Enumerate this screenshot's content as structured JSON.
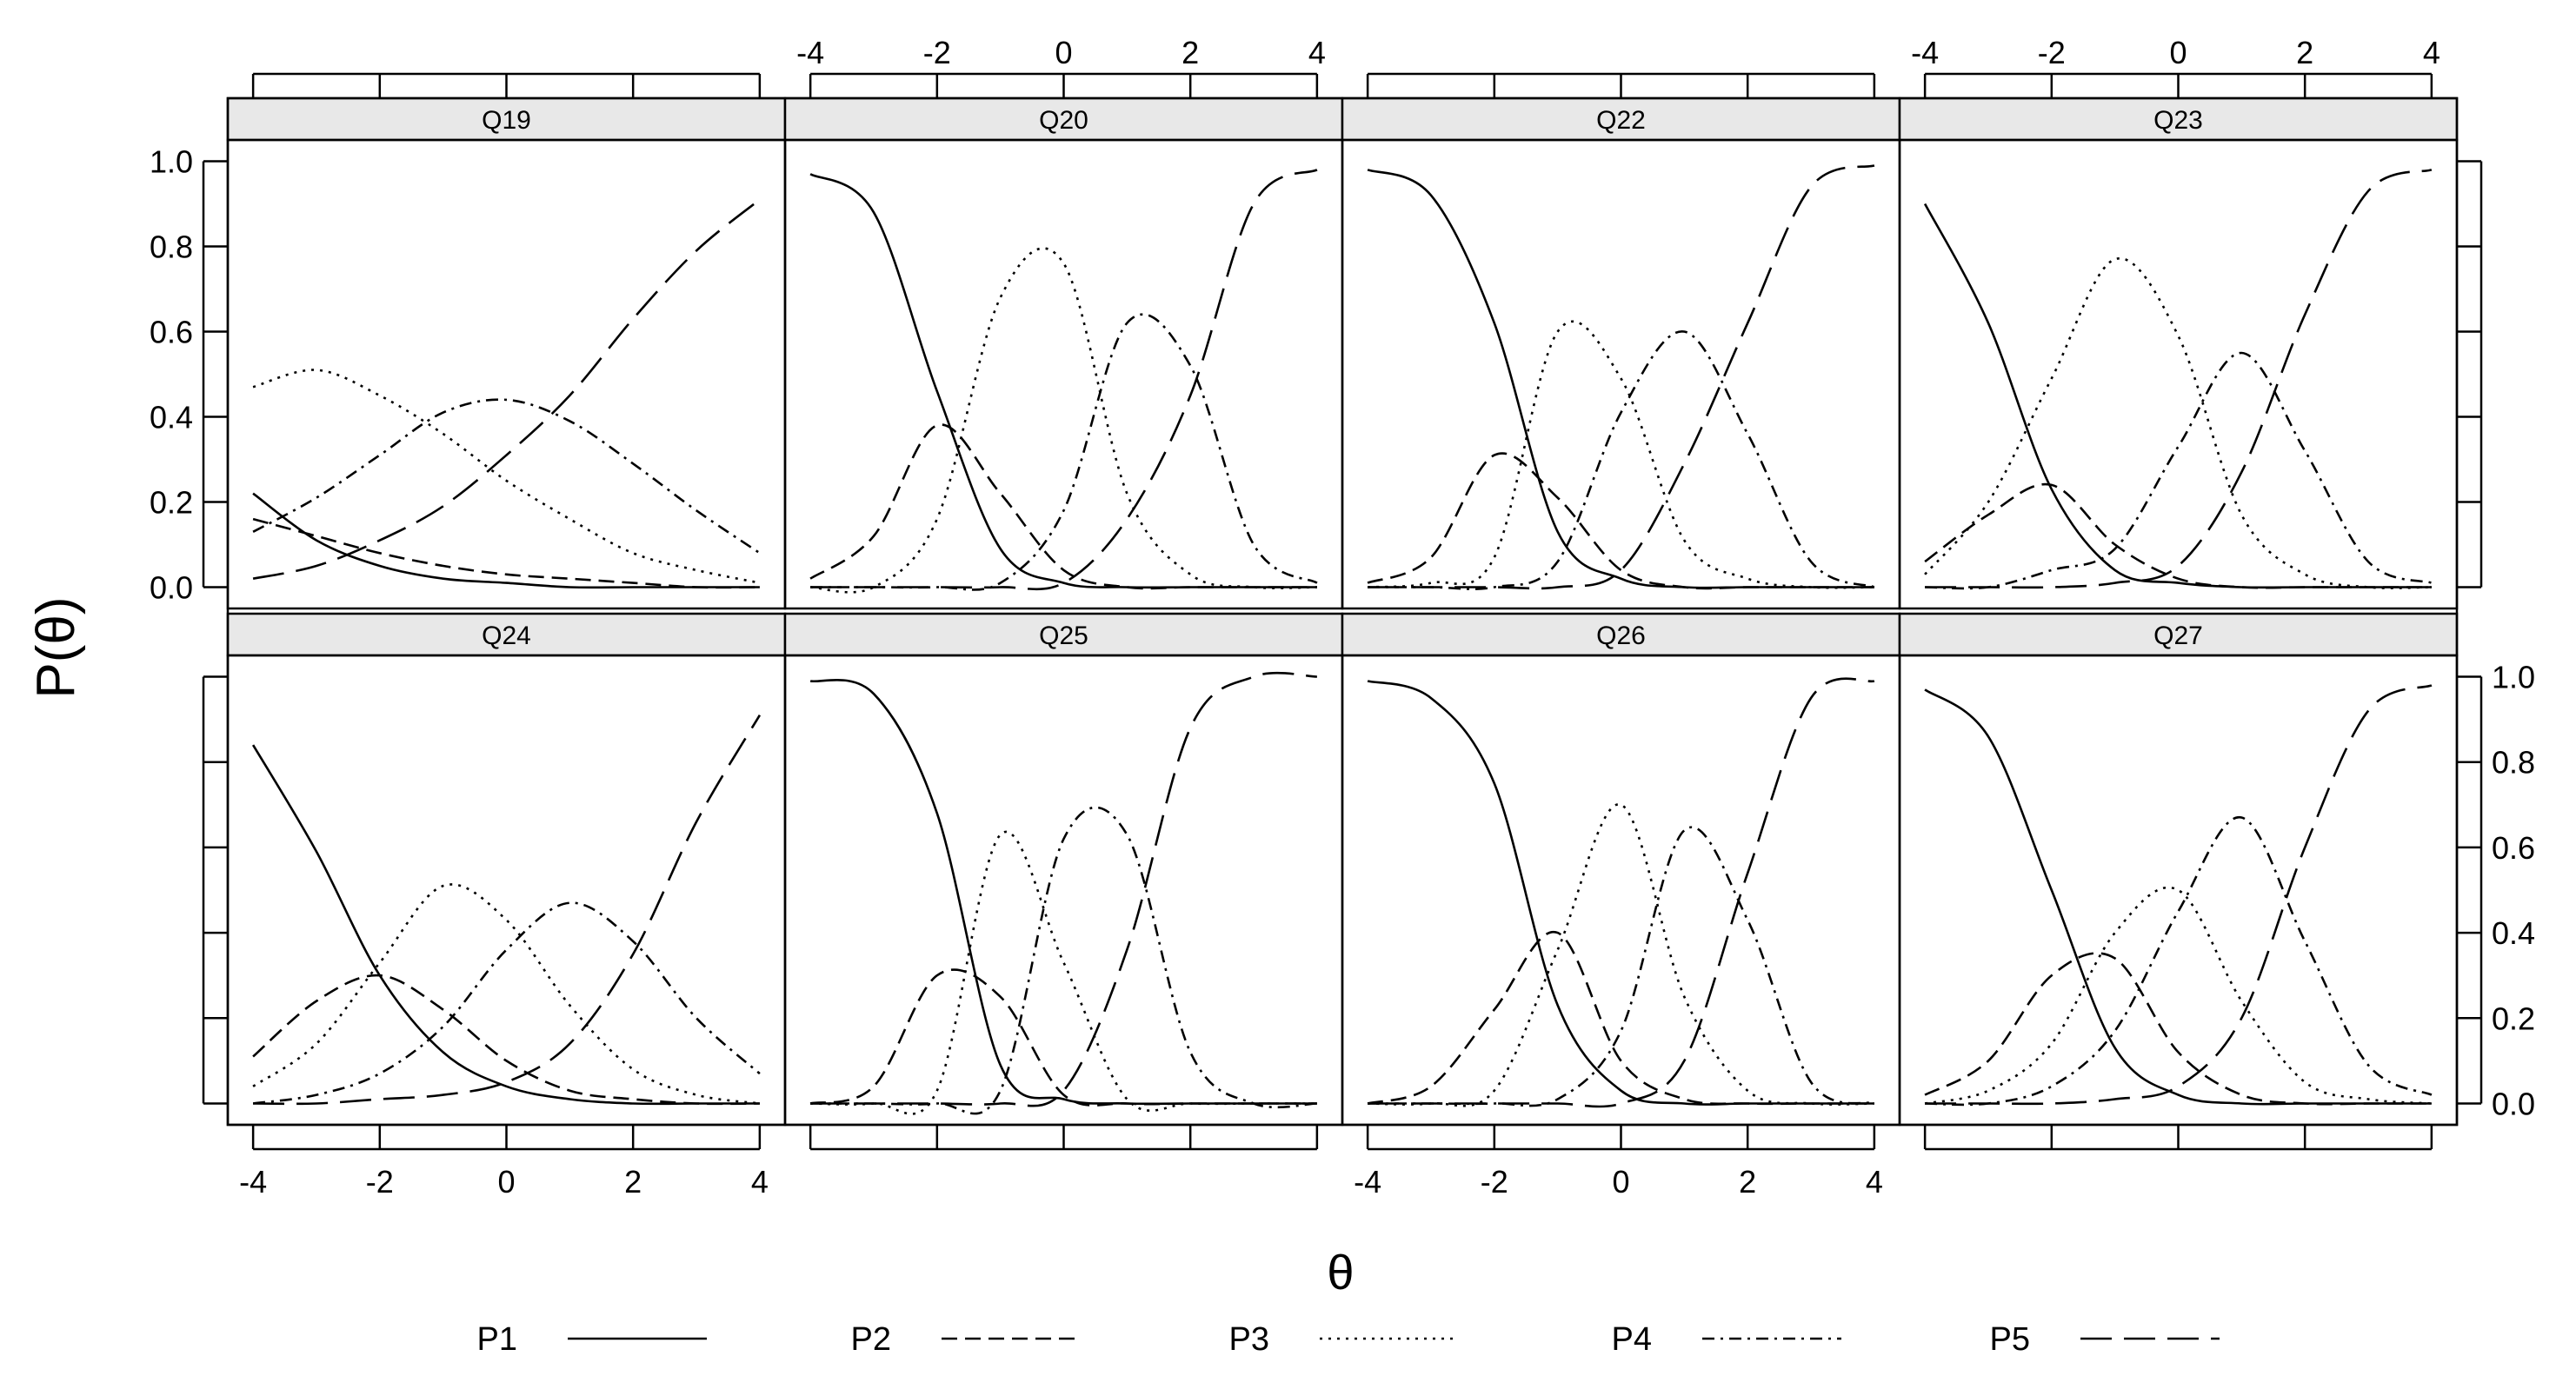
{
  "chart_data": {
    "type": "line",
    "title": "",
    "xlabel": "θ",
    "ylabel": "P(θ)",
    "xlim": [
      -4.4,
      4.4
    ],
    "ylim": [
      -0.05,
      1.05
    ],
    "x_ticks": [
      -4,
      -2,
      0,
      2,
      4
    ],
    "y_ticks": [
      0.0,
      0.2,
      0.4,
      0.6,
      0.8,
      1.0
    ],
    "x_tick_labels": [
      "-4",
      "-2",
      "0",
      "2",
      "4"
    ],
    "y_tick_labels": [
      "0.0",
      "0.2",
      "0.4",
      "0.6",
      "0.8",
      "1.0"
    ],
    "grid": false,
    "legend_position": "bottom",
    "layout": "2 rows x 4 columns of panels",
    "series_names": [
      "P1",
      "P2",
      "P3",
      "P4",
      "P5"
    ],
    "series_styles": [
      "solid",
      "dashed",
      "dotted",
      "dash-dot",
      "long-dash"
    ],
    "x": [
      -4,
      -3,
      -2,
      -1,
      0,
      1,
      2,
      3,
      4
    ],
    "panels": [
      {
        "title": "Q19",
        "series": [
          {
            "name": "P1",
            "values": [
              0.22,
              0.11,
              0.05,
              0.02,
              0.01,
              0.0,
              0.0,
              0.0,
              0.0
            ]
          },
          {
            "name": "P2",
            "values": [
              0.16,
              0.12,
              0.08,
              0.05,
              0.03,
              0.02,
              0.01,
              0.0,
              0.0
            ]
          },
          {
            "name": "P3",
            "values": [
              0.47,
              0.51,
              0.45,
              0.36,
              0.25,
              0.16,
              0.08,
              0.04,
              0.01
            ]
          },
          {
            "name": "P4",
            "values": [
              0.13,
              0.21,
              0.31,
              0.41,
              0.44,
              0.39,
              0.29,
              0.18,
              0.08
            ]
          },
          {
            "name": "P5",
            "values": [
              0.02,
              0.05,
              0.11,
              0.19,
              0.31,
              0.45,
              0.63,
              0.79,
              0.91
            ]
          }
        ]
      },
      {
        "title": "Q20",
        "series": [
          {
            "name": "P1",
            "values": [
              0.97,
              0.88,
              0.46,
              0.09,
              0.01,
              0.0,
              0.0,
              0.0,
              0.0
            ]
          },
          {
            "name": "P2",
            "values": [
              0.02,
              0.12,
              0.38,
              0.22,
              0.04,
              0.0,
              0.0,
              0.0,
              0.0
            ]
          },
          {
            "name": "P3",
            "values": [
              0.0,
              0.0,
              0.16,
              0.68,
              0.76,
              0.22,
              0.03,
              0.0,
              0.0
            ]
          },
          {
            "name": "P4",
            "values": [
              0.0,
              0.0,
              0.0,
              0.01,
              0.18,
              0.62,
              0.52,
              0.1,
              0.01
            ]
          },
          {
            "name": "P5",
            "values": [
              0.0,
              0.0,
              0.0,
              0.0,
              0.01,
              0.16,
              0.45,
              0.9,
              0.98
            ]
          }
        ]
      },
      {
        "title": "Q22",
        "series": [
          {
            "name": "P1",
            "values": [
              0.98,
              0.92,
              0.62,
              0.13,
              0.02,
              0.0,
              0.0,
              0.0,
              0.0
            ]
          },
          {
            "name": "P2",
            "values": [
              0.01,
              0.07,
              0.31,
              0.21,
              0.04,
              0.0,
              0.0,
              0.0,
              0.0
            ]
          },
          {
            "name": "P3",
            "values": [
              0.0,
              0.01,
              0.07,
              0.6,
              0.49,
              0.11,
              0.02,
              0.0,
              0.0
            ]
          },
          {
            "name": "P4",
            "values": [
              0.0,
              0.0,
              0.0,
              0.06,
              0.41,
              0.6,
              0.36,
              0.06,
              0.0
            ]
          },
          {
            "name": "P5",
            "values": [
              0.0,
              0.0,
              0.0,
              0.0,
              0.04,
              0.29,
              0.62,
              0.94,
              0.99
            ]
          }
        ]
      },
      {
        "title": "Q23",
        "series": [
          {
            "name": "P1",
            "values": [
              0.9,
              0.62,
              0.23,
              0.04,
              0.01,
              0.0,
              0.0,
              0.0,
              0.0
            ]
          },
          {
            "name": "P2",
            "values": [
              0.06,
              0.17,
              0.24,
              0.1,
              0.02,
              0.0,
              0.0,
              0.0,
              0.0
            ]
          },
          {
            "name": "P3",
            "values": [
              0.03,
              0.2,
              0.49,
              0.77,
              0.59,
              0.17,
              0.03,
              0.0,
              0.0
            ]
          },
          {
            "name": "P4",
            "values": [
              0.0,
              0.0,
              0.04,
              0.09,
              0.33,
              0.55,
              0.32,
              0.06,
              0.01
            ]
          },
          {
            "name": "P5",
            "values": [
              0.0,
              0.0,
              0.0,
              0.01,
              0.05,
              0.27,
              0.64,
              0.93,
              0.98
            ]
          }
        ]
      },
      {
        "title": "Q24",
        "series": [
          {
            "name": "P1",
            "values": [
              0.84,
              0.59,
              0.3,
              0.12,
              0.04,
              0.01,
              0.0,
              0.0,
              0.0
            ]
          },
          {
            "name": "P2",
            "values": [
              0.11,
              0.24,
              0.3,
              0.22,
              0.1,
              0.03,
              0.01,
              0.0,
              0.0
            ]
          },
          {
            "name": "P3",
            "values": [
              0.04,
              0.14,
              0.33,
              0.51,
              0.43,
              0.23,
              0.08,
              0.02,
              0.0
            ]
          },
          {
            "name": "P4",
            "values": [
              0.0,
              0.02,
              0.07,
              0.18,
              0.36,
              0.47,
              0.38,
              0.2,
              0.07
            ]
          },
          {
            "name": "P5",
            "values": [
              0.0,
              0.0,
              0.01,
              0.02,
              0.05,
              0.14,
              0.35,
              0.66,
              0.91
            ]
          }
        ]
      },
      {
        "title": "Q25",
        "series": [
          {
            "name": "P1",
            "values": [
              0.99,
              0.96,
              0.68,
              0.09,
              0.01,
              0.0,
              0.0,
              0.0,
              0.0
            ]
          },
          {
            "name": "P2",
            "values": [
              0.0,
              0.04,
              0.3,
              0.25,
              0.02,
              0.0,
              0.0,
              0.0,
              0.0
            ]
          },
          {
            "name": "P3",
            "values": [
              0.0,
              0.0,
              0.03,
              0.63,
              0.33,
              0.01,
              0.0,
              0.0,
              0.0
            ]
          },
          {
            "name": "P4",
            "values": [
              0.0,
              0.0,
              0.0,
              0.03,
              0.62,
              0.63,
              0.12,
              0.0,
              0.0
            ]
          },
          {
            "name": "P5",
            "values": [
              0.0,
              0.0,
              0.0,
              0.0,
              0.03,
              0.36,
              0.88,
              1.0,
              1.0
            ]
          }
        ]
      },
      {
        "title": "Q26",
        "series": [
          {
            "name": "P1",
            "values": [
              0.99,
              0.95,
              0.75,
              0.23,
              0.03,
              0.0,
              0.0,
              0.0,
              0.0
            ]
          },
          {
            "name": "P2",
            "values": [
              0.0,
              0.04,
              0.22,
              0.4,
              0.1,
              0.01,
              0.0,
              0.0,
              0.0
            ]
          },
          {
            "name": "P3",
            "values": [
              0.0,
              0.0,
              0.03,
              0.36,
              0.7,
              0.25,
              0.03,
              0.0,
              0.0
            ]
          },
          {
            "name": "P4",
            "values": [
              0.0,
              0.0,
              0.0,
              0.01,
              0.17,
              0.64,
              0.43,
              0.05,
              0.0
            ]
          },
          {
            "name": "P5",
            "values": [
              0.0,
              0.0,
              0.0,
              0.0,
              0.0,
              0.1,
              0.54,
              0.95,
              0.99
            ]
          }
        ]
      },
      {
        "title": "Q27",
        "series": [
          {
            "name": "P1",
            "values": [
              0.97,
              0.86,
              0.5,
              0.13,
              0.02,
              0.0,
              0.0,
              0.0,
              0.0
            ]
          },
          {
            "name": "P2",
            "values": [
              0.02,
              0.1,
              0.3,
              0.34,
              0.12,
              0.02,
              0.0,
              0.0,
              0.0
            ]
          },
          {
            "name": "P3",
            "values": [
              0.0,
              0.03,
              0.14,
              0.4,
              0.5,
              0.24,
              0.05,
              0.01,
              0.0
            ]
          },
          {
            "name": "P4",
            "values": [
              0.0,
              0.0,
              0.04,
              0.17,
              0.45,
              0.67,
              0.38,
              0.09,
              0.02
            ]
          },
          {
            "name": "P5",
            "values": [
              0.0,
              0.0,
              0.0,
              0.01,
              0.04,
              0.2,
              0.6,
              0.92,
              0.98
            ]
          }
        ]
      }
    ]
  }
}
